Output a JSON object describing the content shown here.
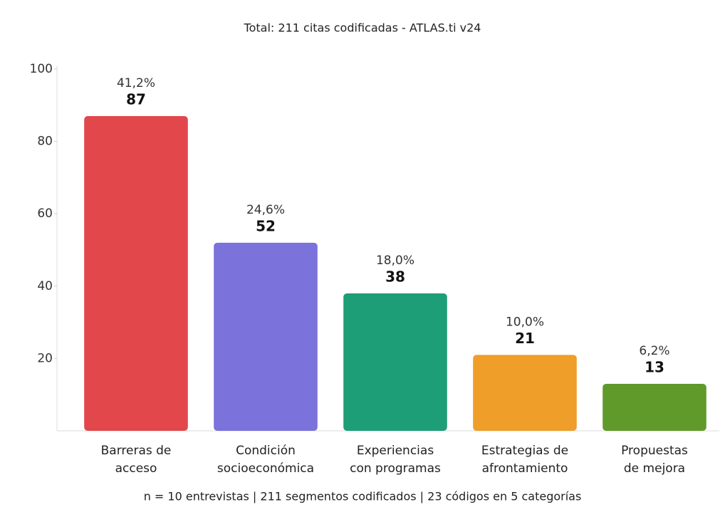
{
  "chart_data": {
    "type": "bar",
    "subtitle": "Total: 211 citas codificadas - ATLAS.ti v24",
    "footnote": "n = 10 entrevistas | 211 segmentos codificados | 23 códigos en 5 categorías",
    "categories": [
      [
        "Barreras de",
        "acceso"
      ],
      [
        "Condición",
        "socioeconómica"
      ],
      [
        "Experiencias",
        "con programas"
      ],
      [
        "Estrategias de",
        "afrontamiento"
      ],
      [
        "Propuestas",
        "de mejora"
      ]
    ],
    "values": [
      87,
      52,
      38,
      21,
      13
    ],
    "percent_labels": [
      "41,2%",
      "24,6%",
      "18,0%",
      "10,0%",
      "6,2%"
    ],
    "colors": [
      "#e2474b",
      "#7b72dc",
      "#1e9e76",
      "#ef9e2a",
      "#5f9a2a"
    ],
    "ylim": [
      0,
      100
    ],
    "yticks": [
      20,
      40,
      60,
      80,
      100
    ],
    "grid": false
  }
}
